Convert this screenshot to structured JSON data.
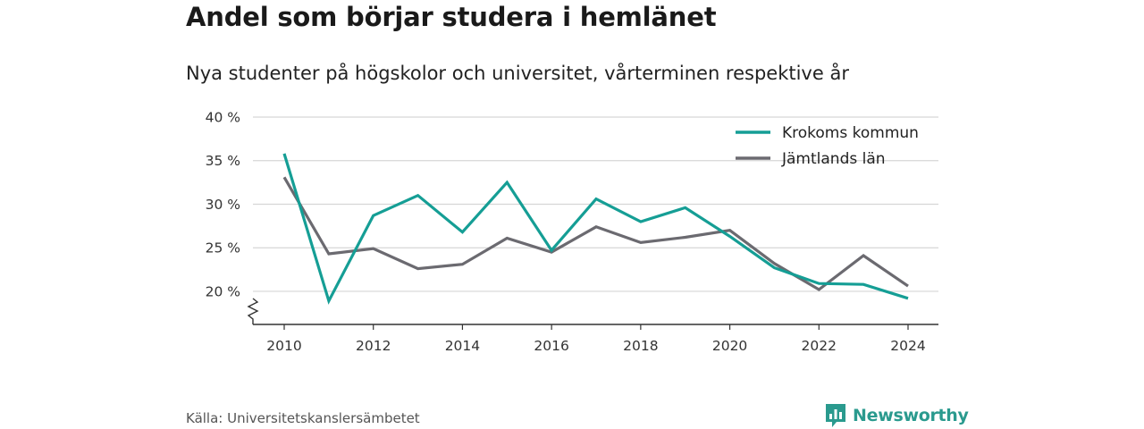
{
  "header": {
    "title": "Andel som börjar studera i hemlänet",
    "subtitle": "Nya studenter på högskolor och universitet, vårterminen respektive år"
  },
  "footer": {
    "source": "Källa: Universitetskanslersämbetet",
    "brand": "Newsworthy",
    "brand_icon": "bar-chart-logo-icon"
  },
  "colors": {
    "krokoms": "#159e95",
    "jamtlands": "#6b6a70",
    "grid": "#d6d6d6",
    "axis": "#333333",
    "brand": "#2a9a8e"
  },
  "chart_data": {
    "type": "line",
    "title": "Andel som börjar studera i hemlänet",
    "subtitle": "Nya studenter på högskolor och universitet, vårterminen respektive år",
    "xlabel": "",
    "ylabel": "",
    "x": [
      2010,
      2011,
      2012,
      2013,
      2014,
      2015,
      2016,
      2017,
      2018,
      2019,
      2020,
      2021,
      2022,
      2023,
      2024
    ],
    "x_ticks": [
      "2010",
      "2012",
      "2014",
      "2016",
      "2018",
      "2020",
      "2022",
      "2024"
    ],
    "y_ticks": [
      "40 %",
      "35 %",
      "30 %",
      "25 %",
      "20 %"
    ],
    "y_tick_values": [
      40,
      35,
      30,
      25,
      20
    ],
    "ylim": [
      16.2,
      40
    ],
    "y_axis_break": true,
    "grid": true,
    "legend_position": "top-right",
    "series": [
      {
        "name": "Krokoms kommun",
        "color": "#159e95",
        "values": [
          35.8,
          18.9,
          28.7,
          31.0,
          26.8,
          32.5,
          24.7,
          30.6,
          28.0,
          29.6,
          26.3,
          22.7,
          20.9,
          20.8,
          19.2
        ]
      },
      {
        "name": "Jämtlands län",
        "color": "#6b6a70",
        "values": [
          33.1,
          24.3,
          24.9,
          22.6,
          23.1,
          26.1,
          24.5,
          27.4,
          25.6,
          26.2,
          27.0,
          23.2,
          20.2,
          24.1,
          20.6
        ]
      }
    ]
  }
}
